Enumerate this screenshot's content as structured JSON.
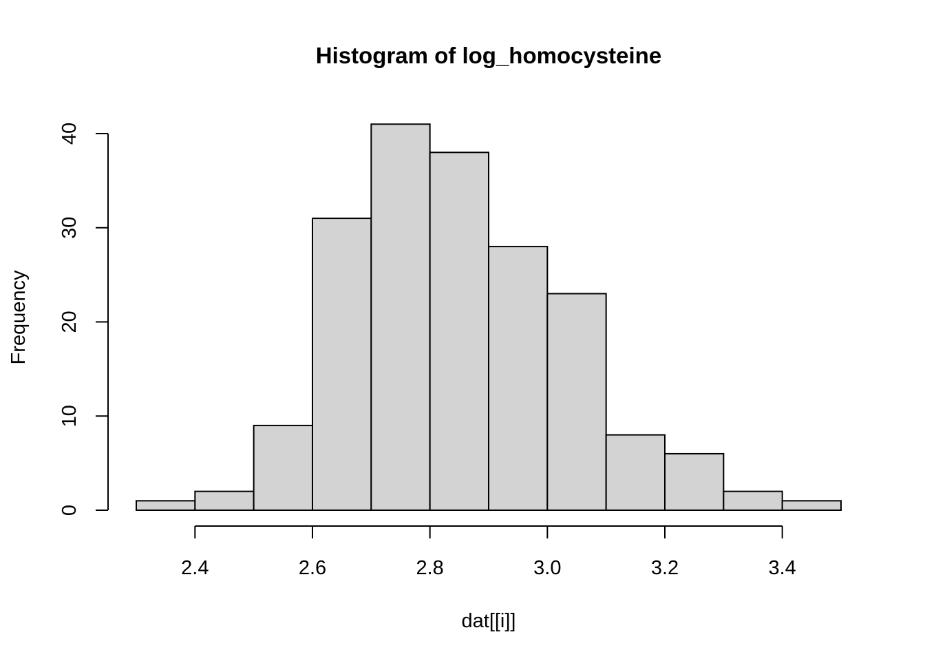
{
  "chart_data": {
    "type": "bar",
    "title": "Histogram of log_homocysteine",
    "xlabel": "dat[[i]]",
    "ylabel": "Frequency",
    "bins": [
      [
        2.3,
        2.4
      ],
      [
        2.4,
        2.5
      ],
      [
        2.5,
        2.6
      ],
      [
        2.6,
        2.7
      ],
      [
        2.7,
        2.8
      ],
      [
        2.8,
        2.9
      ],
      [
        2.9,
        3.0
      ],
      [
        3.0,
        3.1
      ],
      [
        3.1,
        3.2
      ],
      [
        3.2,
        3.3
      ],
      [
        3.3,
        3.4
      ],
      [
        3.4,
        3.5
      ]
    ],
    "values": [
      1,
      2,
      9,
      31,
      41,
      38,
      28,
      23,
      8,
      6,
      2,
      1
    ],
    "xlim": [
      2.3,
      3.5
    ],
    "ylim": [
      0,
      41
    ],
    "x_ticks": [
      2.4,
      2.6,
      2.8,
      3.0,
      3.2,
      3.4
    ],
    "x_tick_labels": [
      "2.4",
      "2.6",
      "2.8",
      "3.0",
      "3.2",
      "3.4"
    ],
    "y_ticks": [
      0,
      10,
      20,
      30,
      40
    ],
    "y_tick_labels": [
      "0",
      "10",
      "20",
      "30",
      "40"
    ],
    "bar_color": "#d3d3d3",
    "border_color": "#000000",
    "grid": false
  }
}
